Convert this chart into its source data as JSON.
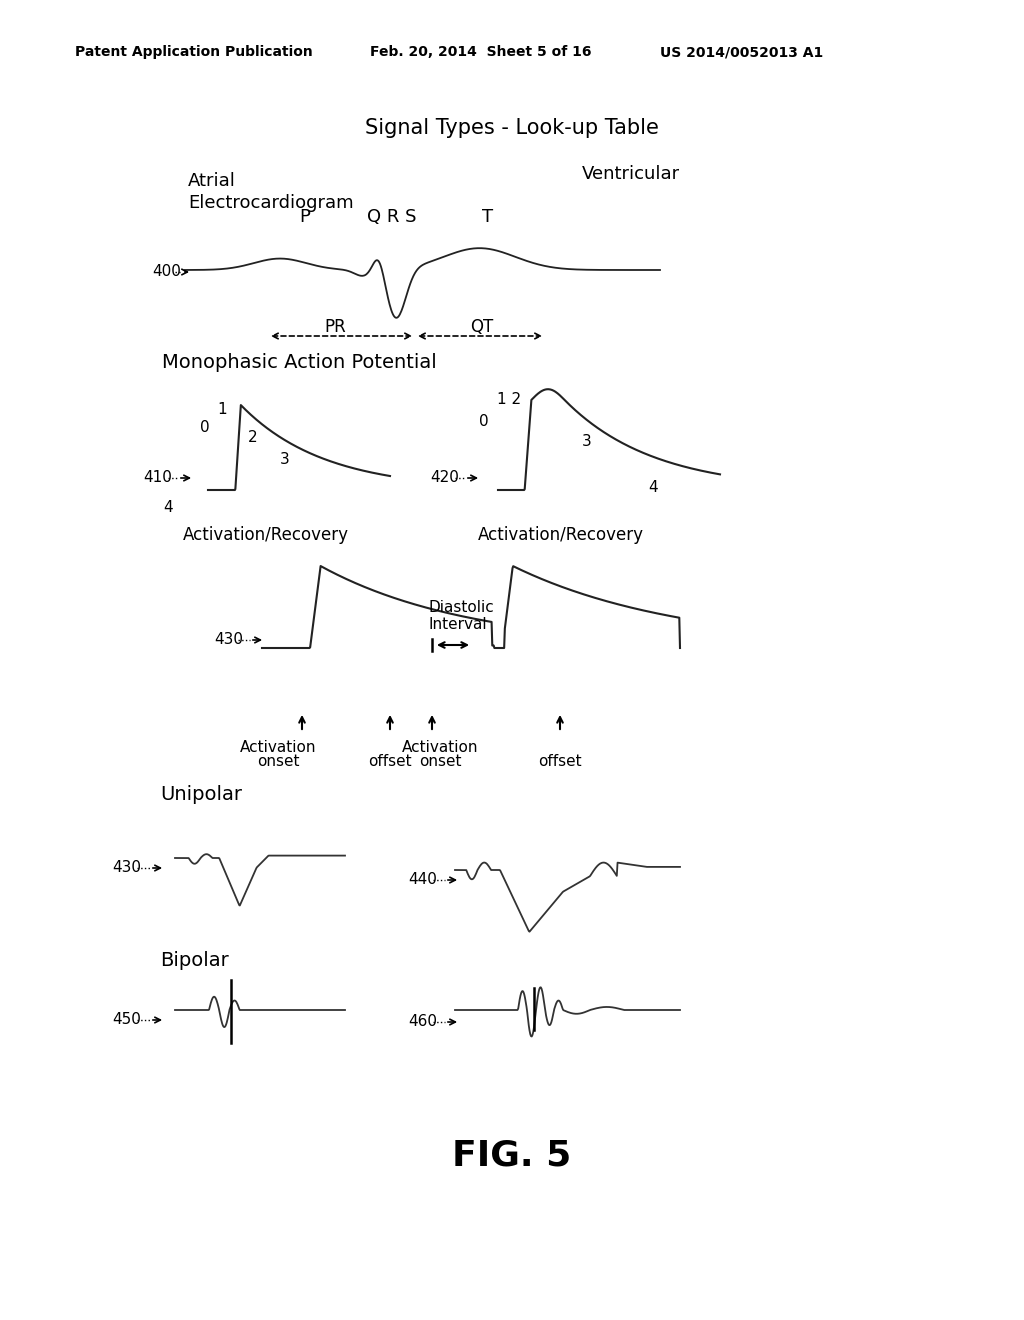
{
  "title": "Signal Types - Look-up Table",
  "header_left": "Patent Application Publication",
  "header_mid": "Feb. 20, 2014  Sheet 5 of 16",
  "header_right": "US 2014/0052013 A1",
  "fig_label": "FIG. 5",
  "background_color": "#ffffff",
  "text_color": "#000000"
}
